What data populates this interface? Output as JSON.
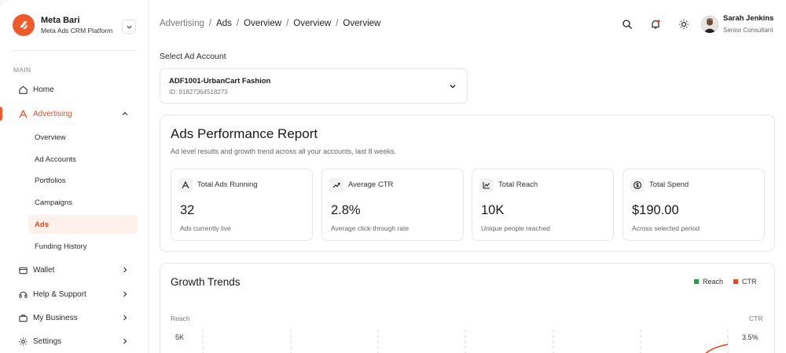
{
  "brand": {
    "name": "Meta Bari",
    "subtitle": "Meta Ads CRM Platform"
  },
  "sidebar": {
    "section_label": "MAIN",
    "items": [
      {
        "label": "Home",
        "icon": "home-icon"
      },
      {
        "label": "Advertising",
        "icon": "advertising-icon",
        "active": true
      },
      {
        "label": "Wallet",
        "icon": "wallet-icon"
      },
      {
        "label": "Help & Support",
        "icon": "headset-icon"
      },
      {
        "label": "My Business",
        "icon": "briefcase-icon"
      },
      {
        "label": "Settings",
        "icon": "gear-icon"
      }
    ],
    "sub_items": [
      {
        "label": "Overview"
      },
      {
        "label": "Ad Accounts"
      },
      {
        "label": "Portfolios"
      },
      {
        "label": "Campaigns"
      },
      {
        "label": "Ads",
        "selected": true
      },
      {
        "label": "Funding History"
      }
    ]
  },
  "header": {
    "breadcrumb": [
      "Advertising",
      "Ads",
      "Overview",
      "Overview",
      "Overview"
    ],
    "user": {
      "name": "Sarah Jenkins",
      "role": "Senior Consultant"
    }
  },
  "account": {
    "label": "Select Ad Account",
    "name": "ADF1001-UrbanCart Fashion",
    "id": "ID: 918273645182​73"
  },
  "report": {
    "title": "Ads Performance Report",
    "description": "Ad level results and growth trend across all your accounts, last 8 weeks.",
    "stats": [
      {
        "label": "Total Ads Running",
        "value": "32",
        "sub": "Ads currently live",
        "icon": "megaphone-icon"
      },
      {
        "label": "Average CTR",
        "value": "2.8%",
        "sub": "Average click-through rate",
        "icon": "trend-up-icon"
      },
      {
        "label": "Total Reach",
        "value": "10K",
        "sub": "Unique people reached",
        "icon": "reach-icon"
      },
      {
        "label": "Total Spend",
        "value": "$190.00",
        "sub": "Across selected period",
        "icon": "dollar-icon"
      }
    ]
  },
  "trends": {
    "title": "Growth Trends",
    "legend": [
      {
        "name": "Reach",
        "color": "#22a045"
      },
      {
        "name": "CTR",
        "color": "#f0451d"
      }
    ],
    "left_axis_title": "Reach",
    "right_axis_title": "CTR",
    "left_top_tick": "5K",
    "right_top_tick": "3.5%"
  },
  "colors": {
    "accent": "#f05a28",
    "active_text": "#e8491d"
  }
}
